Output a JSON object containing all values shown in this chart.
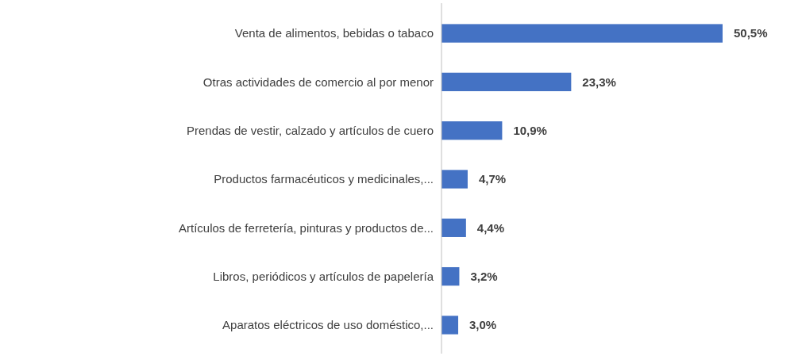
{
  "chart_data": {
    "type": "bar",
    "orientation": "horizontal",
    "categories": [
      "Venta de alimentos, bebidas o tabaco",
      "Otras actividades de comercio al por menor",
      "Prendas de vestir, calzado y artículos de cuero",
      "Productos farmacéuticos y medicinales,...",
      "Artículos de ferretería, pinturas y productos de...",
      "Libros, periódicos y artículos de papelería",
      "Aparatos eléctricos de uso doméstico,..."
    ],
    "values": [
      50.5,
      23.3,
      10.9,
      4.7,
      4.4,
      3.2,
      3.0
    ],
    "value_labels": [
      "50,5%",
      "23,3%",
      "10,9%",
      "4,7%",
      "4,4%",
      "3,2%",
      "3,0%"
    ],
    "color": "#4472c4"
  }
}
